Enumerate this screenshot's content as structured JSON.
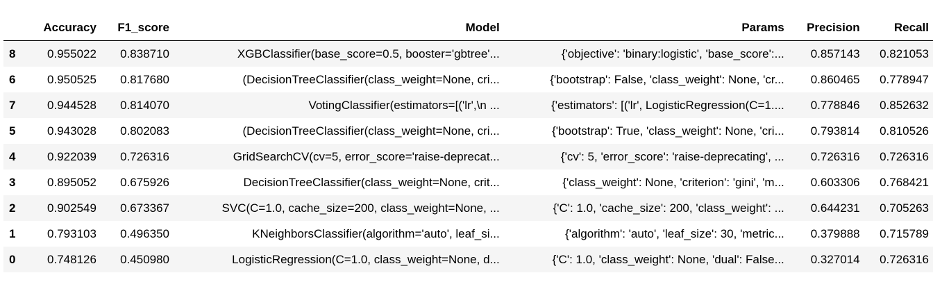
{
  "table": {
    "columns": [
      "",
      "Accuracy",
      "F1_score",
      "Model",
      "Params",
      "Precision",
      "Recall"
    ],
    "rows": [
      {
        "index": "8",
        "accuracy": "0.955022",
        "f1": "0.838710",
        "model": "XGBClassifier(base_score=0.5, booster='gbtree'...",
        "params": "{'objective': 'binary:logistic', 'base_score':...",
        "precision": "0.857143",
        "recall": "0.821053"
      },
      {
        "index": "6",
        "accuracy": "0.950525",
        "f1": "0.817680",
        "model": "(DecisionTreeClassifier(class_weight=None, cri...",
        "params": "{'bootstrap': False, 'class_weight': None, 'cr...",
        "precision": "0.860465",
        "recall": "0.778947"
      },
      {
        "index": "7",
        "accuracy": "0.944528",
        "f1": "0.814070",
        "model": "VotingClassifier(estimators=[('lr',\\n ...",
        "params": "{'estimators': [('lr', LogisticRegression(C=1....",
        "precision": "0.778846",
        "recall": "0.852632"
      },
      {
        "index": "5",
        "accuracy": "0.943028",
        "f1": "0.802083",
        "model": "(DecisionTreeClassifier(class_weight=None, cri...",
        "params": "{'bootstrap': True, 'class_weight': None, 'cri...",
        "precision": "0.793814",
        "recall": "0.810526"
      },
      {
        "index": "4",
        "accuracy": "0.922039",
        "f1": "0.726316",
        "model": "GridSearchCV(cv=5, error_score='raise-deprecat...",
        "params": "{'cv': 5, 'error_score': 'raise-deprecating', ...",
        "precision": "0.726316",
        "recall": "0.726316"
      },
      {
        "index": "3",
        "accuracy": "0.895052",
        "f1": "0.675926",
        "model": "DecisionTreeClassifier(class_weight=None, crit...",
        "params": "{'class_weight': None, 'criterion': 'gini', 'm...",
        "precision": "0.603306",
        "recall": "0.768421"
      },
      {
        "index": "2",
        "accuracy": "0.902549",
        "f1": "0.673367",
        "model": "SVC(C=1.0, cache_size=200, class_weight=None, ...",
        "params": "{'C': 1.0, 'cache_size': 200, 'class_weight': ...",
        "precision": "0.644231",
        "recall": "0.705263"
      },
      {
        "index": "1",
        "accuracy": "0.793103",
        "f1": "0.496350",
        "model": "KNeighborsClassifier(algorithm='auto', leaf_si...",
        "params": "{'algorithm': 'auto', 'leaf_size': 30, 'metric...",
        "precision": "0.379888",
        "recall": "0.715789"
      },
      {
        "index": "0",
        "accuracy": "0.748126",
        "f1": "0.450980",
        "model": "LogisticRegression(C=1.0, class_weight=None, d...",
        "params": "{'C': 1.0, 'class_weight': None, 'dual': False...",
        "precision": "0.327014",
        "recall": "0.726316"
      }
    ]
  }
}
